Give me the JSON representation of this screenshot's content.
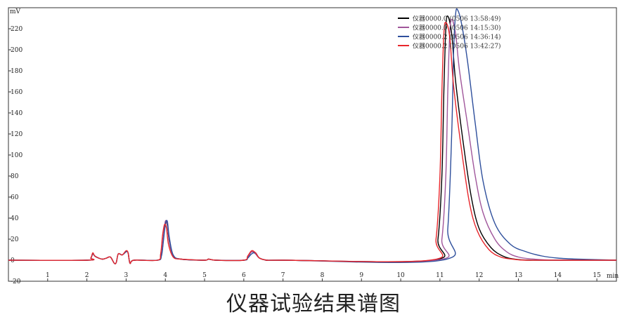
{
  "caption": "仪器试验结果谱图",
  "chart_data": {
    "type": "line",
    "title": "",
    "xlabel": "min",
    "ylabel": "mV",
    "xlim": [
      0,
      15.5
    ],
    "ylim": [
      -20,
      240
    ],
    "xticks": [
      1,
      2,
      3,
      4,
      5,
      6,
      7,
      8,
      9,
      10,
      11,
      12,
      13,
      14,
      15
    ],
    "yticks": [
      -20,
      0,
      20,
      40,
      60,
      80,
      100,
      120,
      140,
      160,
      180,
      200,
      220
    ],
    "grid": false,
    "legend_position": "top-right",
    "series": [
      {
        "name": "仪器0000.0 (0506 13:58:49)",
        "color": "#000000",
        "x": [
          0,
          2.0,
          2.1,
          2.15,
          2.2,
          2.3,
          2.4,
          2.5,
          2.6,
          2.7,
          2.75,
          2.8,
          2.9,
          3.0,
          3.05,
          3.1,
          3.2,
          3.8,
          3.9,
          3.95,
          4.0,
          4.05,
          4.1,
          4.2,
          4.4,
          5.0,
          5.1,
          5.3,
          6.0,
          6.1,
          6.2,
          6.3,
          6.4,
          6.6,
          7.0,
          10.8,
          10.95,
          11.05,
          11.1,
          11.15,
          11.2,
          11.3,
          11.4,
          11.6,
          11.8,
          12.0,
          12.3,
          12.6,
          12.9,
          13.3,
          14.0,
          15.5
        ],
        "y": [
          0,
          0,
          2,
          6,
          4,
          2,
          1,
          2,
          3,
          -3,
          -2,
          6,
          5,
          8,
          7,
          -3,
          0,
          0,
          5,
          20,
          36,
          33,
          18,
          4,
          1,
          0,
          1,
          0,
          0,
          3,
          8,
          6,
          2,
          0,
          0,
          0,
          20,
          80,
          160,
          220,
          232,
          215,
          170,
          110,
          60,
          30,
          12,
          4,
          1,
          0,
          0,
          0
        ]
      },
      {
        "name": "仪器0000.0 (0506 14:15:30)",
        "color": "#a0569b",
        "x": [
          0,
          2.0,
          2.1,
          2.15,
          2.2,
          2.3,
          2.4,
          2.5,
          2.6,
          2.7,
          2.75,
          2.8,
          2.9,
          3.0,
          3.05,
          3.1,
          3.2,
          3.8,
          3.9,
          3.95,
          4.0,
          4.05,
          4.1,
          4.2,
          4.4,
          5.0,
          5.1,
          5.3,
          6.0,
          6.1,
          6.2,
          6.3,
          6.4,
          6.6,
          7.0,
          10.9,
          11.05,
          11.15,
          11.2,
          11.25,
          11.3,
          11.4,
          11.5,
          11.7,
          11.9,
          12.1,
          12.4,
          12.7,
          13.0,
          13.4,
          14.0,
          15.5
        ],
        "y": [
          0,
          0,
          2,
          6,
          4,
          2,
          1,
          2,
          3,
          -3,
          -2,
          6,
          5,
          8,
          7,
          -3,
          0,
          0,
          5,
          22,
          37,
          34,
          19,
          4,
          1,
          0,
          1,
          0,
          0,
          3,
          8,
          6,
          2,
          0,
          0,
          0,
          20,
          80,
          160,
          215,
          229,
          215,
          180,
          130,
          80,
          45,
          20,
          8,
          3,
          1,
          0,
          0
        ]
      },
      {
        "name": "仪器0000.2 (0506 14:36:14)",
        "color": "#2e4f9c",
        "x": [
          0,
          2.0,
          2.1,
          2.15,
          2.2,
          2.3,
          2.4,
          2.5,
          2.6,
          2.7,
          2.75,
          2.8,
          2.9,
          3.0,
          3.05,
          3.1,
          3.2,
          3.8,
          3.9,
          3.95,
          4.0,
          4.05,
          4.1,
          4.2,
          4.4,
          5.0,
          5.1,
          5.3,
          6.0,
          6.1,
          6.2,
          6.3,
          6.4,
          6.6,
          7.0,
          11.05,
          11.2,
          11.3,
          11.35,
          11.4,
          11.45,
          11.55,
          11.7,
          11.9,
          12.1,
          12.4,
          12.8,
          13.2,
          13.6,
          14.0,
          14.5,
          15.5
        ],
        "y": [
          0,
          0,
          2,
          6,
          4,
          2,
          1,
          2,
          3,
          -3,
          -2,
          6,
          5,
          8,
          7,
          -3,
          0,
          0,
          4,
          18,
          34,
          37,
          22,
          5,
          1,
          0,
          1,
          0,
          0,
          2,
          6,
          7,
          2,
          0,
          0,
          0,
          30,
          120,
          200,
          234,
          238,
          225,
          190,
          130,
          75,
          35,
          15,
          8,
          4,
          2,
          1,
          0
        ]
      },
      {
        "name": "仪器0000.2 (0506 13:42:27)",
        "color": "#e8262b",
        "x": [
          0,
          2.0,
          2.1,
          2.15,
          2.2,
          2.3,
          2.4,
          2.5,
          2.6,
          2.7,
          2.75,
          2.8,
          2.9,
          3.0,
          3.05,
          3.1,
          3.2,
          3.8,
          3.88,
          3.93,
          3.98,
          4.03,
          4.08,
          4.2,
          4.4,
          5.0,
          5.1,
          5.3,
          6.0,
          6.1,
          6.2,
          6.3,
          6.4,
          6.6,
          7.0,
          10.75,
          10.9,
          11.0,
          11.05,
          11.1,
          11.15,
          11.25,
          11.35,
          11.55,
          11.75,
          11.95,
          12.25,
          12.55,
          12.85,
          13.2,
          14.0,
          15.5
        ],
        "y": [
          0,
          0,
          2,
          7,
          4,
          2,
          1,
          2,
          3,
          -3,
          -2,
          6,
          5,
          9,
          7,
          -3,
          0,
          0,
          6,
          24,
          34,
          30,
          15,
          3,
          1,
          0,
          1,
          0,
          0,
          4,
          9,
          7,
          2,
          0,
          0,
          0,
          20,
          80,
          160,
          215,
          226,
          212,
          165,
          105,
          55,
          28,
          10,
          3,
          1,
          0,
          0,
          0
        ]
      }
    ]
  }
}
